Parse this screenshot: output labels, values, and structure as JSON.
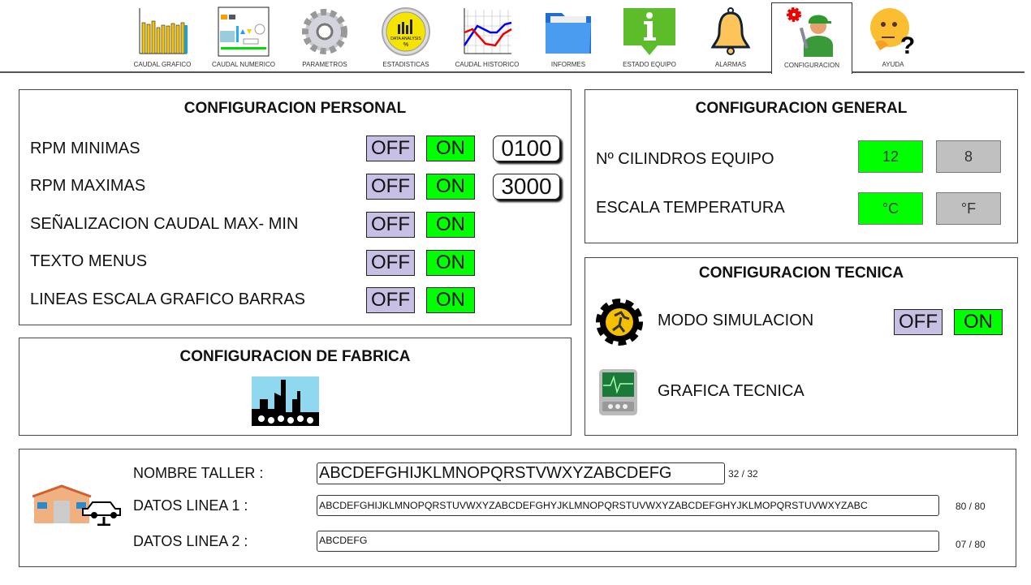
{
  "tabs": [
    {
      "label": "CAUDAL GRAFICO",
      "icon": "bar-chart-icon"
    },
    {
      "label": "CAUDAL NUMERICO",
      "icon": "dashboard-icon"
    },
    {
      "label": "PARAMETROS",
      "icon": "gear-icon"
    },
    {
      "label": "ESTADISTICAS",
      "icon": "data-analysis-icon",
      "icon_text": "DATA ANALYSIS %"
    },
    {
      "label": "CAUDAL HISTORICO",
      "icon": "line-chart-icon"
    },
    {
      "label": "INFORMES",
      "icon": "folder-icon"
    },
    {
      "label": "ESTADO EQUIPO",
      "icon": "info-icon"
    },
    {
      "label": "ALARMAS",
      "icon": "bell-icon"
    },
    {
      "label": "CONFIGURACION",
      "icon": "mechanic-icon",
      "active": true
    },
    {
      "label": "AYUDA",
      "icon": "thinking-face-icon"
    }
  ],
  "personal": {
    "title": "CONFIGURACION PERSONAL",
    "off_label": "OFF",
    "on_label": "ON",
    "rows": [
      {
        "label": "RPM MINIMAS",
        "value": "0100"
      },
      {
        "label": "RPM MAXIMAS",
        "value": "3000"
      },
      {
        "label": "SEÑALIZACION CAUDAL MAX- MIN"
      },
      {
        "label": "TEXTO MENUS"
      },
      {
        "label": "LINEAS ESCALA GRAFICO BARRAS"
      }
    ]
  },
  "general": {
    "title": "CONFIGURACION GENERAL",
    "rows": [
      {
        "label": "Nº CILINDROS EQUIPO",
        "options": [
          "12",
          "8"
        ],
        "selected": "12"
      },
      {
        "label": "ESCALA TEMPERATURA",
        "options": [
          "°C",
          "°F"
        ],
        "selected": "°C"
      }
    ]
  },
  "fabrica": {
    "title": "CONFIGURACION DE FABRICA",
    "icon": "factory-icon"
  },
  "tecnica": {
    "title": "CONFIGURACION TECNICA",
    "simulacion": {
      "label": "MODO SIMULACION",
      "off_label": "OFF",
      "on_label": "ON"
    },
    "grafica": {
      "label": "GRAFICA TECNICA"
    }
  },
  "taller": {
    "fields": [
      {
        "label": "NOMBRE TALLER :",
        "value": "ABCDEFGHIJKLMNOPQRSTVWXYZABCDEFG",
        "count": "32 / 32"
      },
      {
        "label": "DATOS LINEA 1 :",
        "value": "ABCDEFGHIJKLMNOPQRSTUVWXYZABCDEFGHYJKLMNOPQRSTUVWXYZABCDEFGHYJKLMOPQRSTUVWXYZABC",
        "count": "80 / 80"
      },
      {
        "label": "DATOS LINEA 2 :",
        "value": "ABCDEFG",
        "count": "07 / 80"
      }
    ]
  },
  "colors": {
    "on": "#00ff00",
    "off": "#c8c0e4",
    "inactive": "#c0c0c0"
  }
}
